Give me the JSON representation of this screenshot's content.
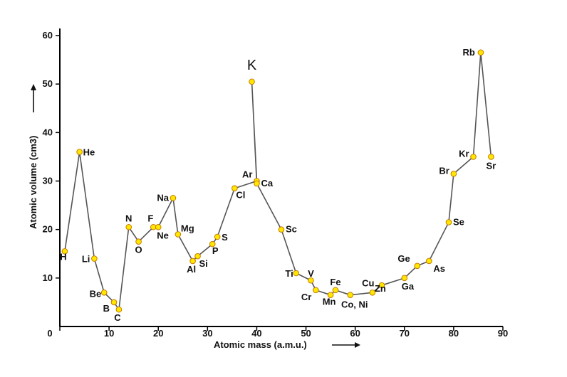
{
  "chart_data": {
    "type": "line",
    "title": "",
    "xlabel": "Atomic mass (a.m.u.)",
    "ylabel": "Atomic volume (cm3)",
    "xlim": [
      0,
      90
    ],
    "ylim": [
      0,
      60
    ],
    "xticks": [
      0,
      10,
      20,
      30,
      40,
      50,
      60,
      70,
      80,
      90
    ],
    "yticks": [
      10,
      20,
      30,
      40,
      50,
      60
    ],
    "grid": false,
    "points": [
      {
        "label": "H",
        "x": 1,
        "y": 15.5
      },
      {
        "label": "He",
        "x": 4,
        "y": 36
      },
      {
        "label": "Li",
        "x": 7,
        "y": 14
      },
      {
        "label": "Be",
        "x": 9,
        "y": 7
      },
      {
        "label": "B",
        "x": 11,
        "y": 5
      },
      {
        "label": "C",
        "x": 12,
        "y": 3.5
      },
      {
        "label": "N",
        "x": 14,
        "y": 20.5
      },
      {
        "label": "O",
        "x": 16,
        "y": 17.5
      },
      {
        "label": "F",
        "x": 19,
        "y": 20.5
      },
      {
        "label": "Ne",
        "x": 20,
        "y": 20.5
      },
      {
        "label": "Na",
        "x": 23,
        "y": 26.5
      },
      {
        "label": "Mg",
        "x": 24,
        "y": 19
      },
      {
        "label": "Al",
        "x": 27,
        "y": 13.5
      },
      {
        "label": "Si",
        "x": 28,
        "y": 14.5
      },
      {
        "label": "P",
        "x": 31,
        "y": 17
      },
      {
        "label": "S",
        "x": 32,
        "y": 18.5
      },
      {
        "label": "Cl",
        "x": 35.5,
        "y": 28.5
      },
      {
        "label": "Ar",
        "x": 40,
        "y": 30
      },
      {
        "label": "K",
        "x": 39,
        "y": 50.5
      },
      {
        "label": "Ca",
        "x": 40,
        "y": 29.5
      },
      {
        "label": "Sc",
        "x": 45,
        "y": 20
      },
      {
        "label": "Ti",
        "x": 48,
        "y": 11
      },
      {
        "label": "V",
        "x": 51,
        "y": 9.5
      },
      {
        "label": "Cr",
        "x": 52,
        "y": 7.5
      },
      {
        "label": "Mn",
        "x": 55,
        "y": 6.5
      },
      {
        "label": "Fe",
        "x": 56,
        "y": 7.5
      },
      {
        "label": "Co, Ni",
        "x": 59,
        "y": 6.5
      },
      {
        "label": "Cu",
        "x": 63.5,
        "y": 7
      },
      {
        "label": "Zn",
        "x": 65.4,
        "y": 8.5
      },
      {
        "label": "Ga",
        "x": 70,
        "y": 10
      },
      {
        "label": "Ge",
        "x": 72.6,
        "y": 12.5
      },
      {
        "label": "As",
        "x": 75,
        "y": 13.5
      },
      {
        "label": "Se",
        "x": 79,
        "y": 21.5
      },
      {
        "label": "Br",
        "x": 80,
        "y": 31.5
      },
      {
        "label": "Kr",
        "x": 84,
        "y": 35
      },
      {
        "label": "Rb",
        "x": 85.5,
        "y": 56.5
      },
      {
        "label": "Sr",
        "x": 87.6,
        "y": 35
      }
    ]
  }
}
